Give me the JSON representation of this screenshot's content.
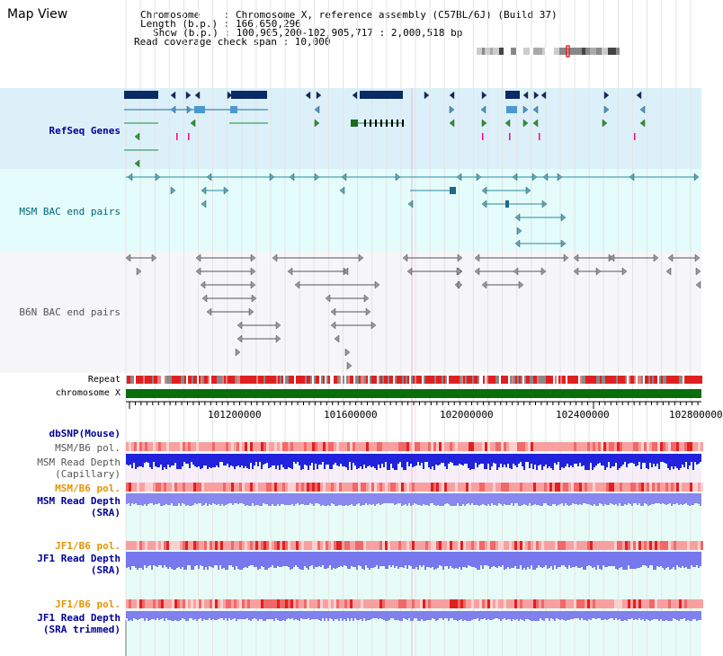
{
  "window": {
    "title": "Map View"
  },
  "header": {
    "chromosome": "Chromosome    : Chromosome X, reference assembly (C57BL/6J) (Build 37)",
    "length": "Length (b.p.) : 166,650,296",
    "show": "Show (b.p.) : 100,905,200-102,905,717 : 2,000,518 bp",
    "coverage": "Read coverage check span : 10,000"
  },
  "colors": {
    "refseq_bg": "#dcf0fa",
    "msm_bac_bg": "#e4fcfc",
    "b6n_bac_bg": "#f6f5f8",
    "lower_bg": "#e8fcf7",
    "label_navy": "#000099",
    "label_teal": "#006677",
    "label_orange": "#e59400",
    "chromosome_bar": "#0a6e0a"
  },
  "tracks": {
    "refseq": "RefSeq Genes",
    "msm_bac": "MSM BAC end pairs",
    "b6n_bac": "B6N BAC end pairs",
    "repeat": "Repeat",
    "chromosome": "chromosome X",
    "dbsnp": "dbSNP(Mouse)",
    "msm_pol": "MSM/B6 pol.",
    "msm_depth_cap_1": "MSM Read Depth",
    "msm_depth_cap_2": "(Capillary)",
    "msm_pol2": "MSM/B6 pol.",
    "msm_depth_sra_1": "MSM Read Depth",
    "msm_depth_sra_2": "(SRA)",
    "jf1_pol": "JF1/B6 pol.",
    "jf1_depth_sra_1": "JF1 Read Depth",
    "jf1_depth_sra_2": "(SRA)",
    "jf1_pol2": "JF1/B6 pol.",
    "jf1_depth_trim_1": "JF1 Read Depth",
    "jf1_depth_trim_2": "(SRA trimmed)"
  },
  "axis": {
    "ticks": [
      "101200000",
      "101600000",
      "102000000",
      "102400000",
      "102800000"
    ]
  }
}
